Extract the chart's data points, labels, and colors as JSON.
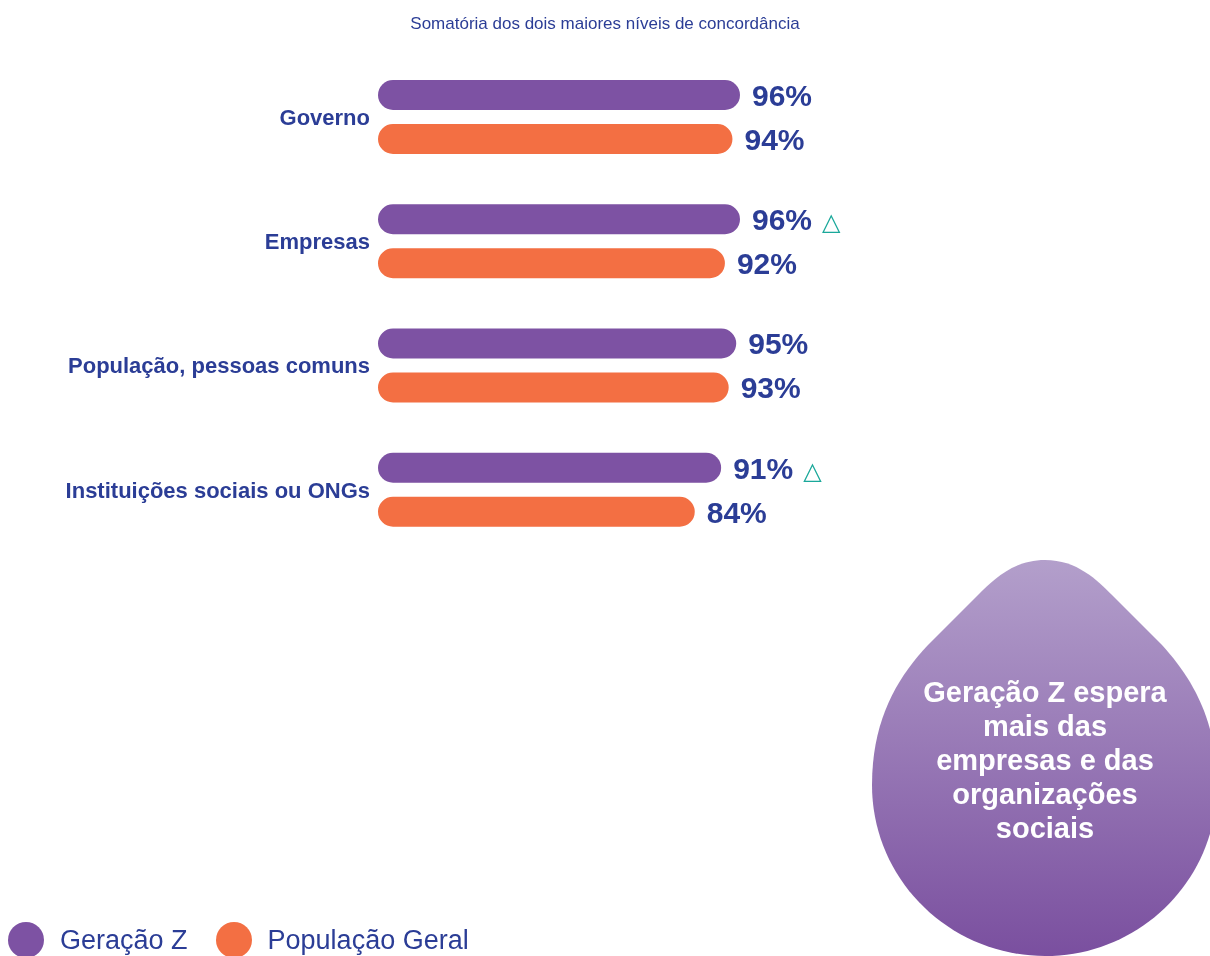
{
  "chart_data": {
    "type": "bar",
    "orientation": "horizontal",
    "title": "Somatória dos dois maiores níveis de concordância",
    "categories": [
      "Governo",
      "Empresas",
      "População, pessoas comuns",
      "Instituições sociais ou ONGs"
    ],
    "series": [
      {
        "name": "Geração Z",
        "color": "#7d52a3",
        "values": [
          96,
          96,
          95,
          91
        ],
        "value_labels": [
          "96%",
          "96% △",
          "95%",
          "91% △"
        ]
      },
      {
        "name": "População Geral",
        "color": "#f36f43",
        "values": [
          94,
          92,
          93,
          84
        ],
        "value_labels": [
          "94%",
          "92%",
          "93%",
          "84%"
        ]
      }
    ],
    "annotations": [
      "Geração Z espera mais das empresas e das organizações sociais"
    ],
    "legend": "bottom left",
    "grid": false
  }
}
